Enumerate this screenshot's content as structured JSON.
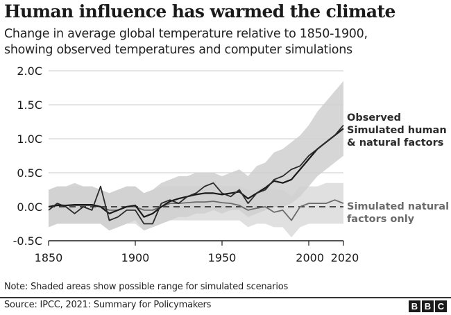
{
  "header": {
    "title": "Human influence has warmed the climate",
    "subtitle_line1": "Change in average global temperature relative to 1850-1900,",
    "subtitle_line2": "showing observed temperatures and computer simulations"
  },
  "footer": {
    "note": "Note: Shaded areas show possible range for simulated scenarios",
    "source": "Source: IPCC, 2021: Summary for Policymakers",
    "logo_letters": [
      "B",
      "B",
      "C"
    ]
  },
  "colors": {
    "observed": "#2b2b2b",
    "human_natural": "#1a1a1a",
    "natural": "#6b6b6b",
    "human_band": "#cfcfcf",
    "natural_band": "#e0e0e0",
    "overlap_band": "#b9b9b9",
    "grid": "#c8c8c8",
    "axis": "#1a1a1a",
    "label_natural": "#6b6b6b"
  },
  "chart_data": {
    "type": "line",
    "title": "Human influence has warmed the climate",
    "subtitle": "Change in average global temperature relative to 1850-1900, showing observed temperatures and computer simulations",
    "xlabel": "",
    "ylabel": "",
    "xlim": [
      1850,
      2020
    ],
    "ylim": [
      -0.5,
      2.0
    ],
    "x_ticks": [
      1850,
      1900,
      1950,
      2000,
      2020
    ],
    "x_tick_labels": [
      "1850",
      "1900",
      "1950",
      "2000",
      "2020"
    ],
    "y_ticks": [
      -0.5,
      0.0,
      0.5,
      1.0,
      1.5,
      2.0
    ],
    "y_tick_labels": [
      "-0.5C",
      "0.0C",
      "0.5C",
      "1.0C",
      "1.5C",
      "2.0C"
    ],
    "grid": true,
    "legend": "right (direct labels)",
    "reference_line": {
      "y": 0.0,
      "style": "dashed"
    },
    "x": [
      1850,
      1855,
      1860,
      1865,
      1870,
      1875,
      1880,
      1885,
      1890,
      1895,
      1900,
      1905,
      1910,
      1915,
      1920,
      1925,
      1930,
      1935,
      1940,
      1945,
      1950,
      1955,
      1960,
      1965,
      1970,
      1975,
      1980,
      1985,
      1990,
      1995,
      2000,
      2005,
      2010,
      2015,
      2020
    ],
    "series": [
      {
        "name": "Observed",
        "label": "Observed",
        "values": [
          -0.05,
          0.05,
          0.0,
          -0.1,
          0.0,
          -0.05,
          0.3,
          -0.2,
          -0.15,
          -0.05,
          -0.05,
          -0.25,
          -0.25,
          0.05,
          0.1,
          0.05,
          0.15,
          0.2,
          0.3,
          0.35,
          0.2,
          0.15,
          0.25,
          0.05,
          0.2,
          0.25,
          0.4,
          0.45,
          0.55,
          0.6,
          0.75,
          0.85,
          0.95,
          1.05,
          1.2
        ]
      },
      {
        "name": "Simulated human & natural factors",
        "label": "Simulated human & natural factors",
        "values": [
          0.0,
          0.02,
          0.02,
          0.03,
          0.03,
          0.03,
          0.0,
          -0.1,
          -0.05,
          0.0,
          0.02,
          -0.15,
          -0.1,
          0.0,
          0.08,
          0.12,
          0.15,
          0.18,
          0.2,
          0.2,
          0.18,
          0.2,
          0.22,
          0.12,
          0.2,
          0.28,
          0.38,
          0.35,
          0.4,
          0.55,
          0.7,
          0.85,
          0.95,
          1.05,
          1.15
        ]
      },
      {
        "name": "Simulated natural factors only",
        "label": "Simulated natural factors only",
        "values": [
          0.0,
          0.03,
          0.02,
          0.02,
          0.02,
          0.02,
          0.0,
          -0.05,
          -0.05,
          0.0,
          0.0,
          -0.05,
          -0.05,
          0.0,
          0.05,
          0.05,
          0.06,
          0.07,
          0.07,
          0.08,
          0.06,
          0.05,
          0.02,
          -0.05,
          -0.02,
          0.0,
          -0.08,
          -0.05,
          -0.2,
          0.0,
          0.05,
          0.05,
          0.05,
          0.1,
          0.05
        ]
      }
    ],
    "ranges": [
      {
        "name": "Simulated human & natural factors range",
        "lower": [
          -0.3,
          -0.25,
          -0.25,
          -0.25,
          -0.25,
          -0.25,
          -0.25,
          -0.35,
          -0.3,
          -0.25,
          -0.2,
          -0.35,
          -0.3,
          -0.25,
          -0.2,
          -0.15,
          -0.15,
          -0.1,
          -0.1,
          -0.05,
          -0.1,
          -0.05,
          -0.05,
          -0.15,
          -0.1,
          -0.05,
          0.0,
          0.0,
          0.05,
          0.15,
          0.3,
          0.45,
          0.55,
          0.65,
          0.75
        ],
        "upper": [
          0.25,
          0.3,
          0.3,
          0.35,
          0.3,
          0.3,
          0.25,
          0.2,
          0.25,
          0.3,
          0.3,
          0.2,
          0.25,
          0.35,
          0.4,
          0.45,
          0.45,
          0.5,
          0.5,
          0.5,
          0.45,
          0.5,
          0.55,
          0.45,
          0.6,
          0.65,
          0.8,
          0.85,
          0.95,
          1.05,
          1.2,
          1.4,
          1.55,
          1.7,
          1.85
        ]
      },
      {
        "name": "Simulated natural factors only range",
        "lower": [
          -0.3,
          -0.25,
          -0.25,
          -0.25,
          -0.25,
          -0.25,
          -0.25,
          -0.35,
          -0.3,
          -0.25,
          -0.25,
          -0.35,
          -0.3,
          -0.25,
          -0.2,
          -0.2,
          -0.2,
          -0.2,
          -0.2,
          -0.2,
          -0.2,
          -0.2,
          -0.2,
          -0.3,
          -0.25,
          -0.25,
          -0.3,
          -0.3,
          -0.45,
          -0.3,
          -0.25,
          -0.25,
          -0.25,
          -0.25,
          -0.25
        ],
        "upper": [
          0.25,
          0.3,
          0.3,
          0.3,
          0.3,
          0.3,
          0.25,
          0.2,
          0.25,
          0.3,
          0.3,
          0.2,
          0.25,
          0.3,
          0.3,
          0.3,
          0.3,
          0.3,
          0.3,
          0.3,
          0.3,
          0.3,
          0.3,
          0.25,
          0.25,
          0.3,
          0.25,
          0.25,
          0.15,
          0.3,
          0.3,
          0.3,
          0.35,
          0.35,
          0.35
        ]
      }
    ]
  }
}
